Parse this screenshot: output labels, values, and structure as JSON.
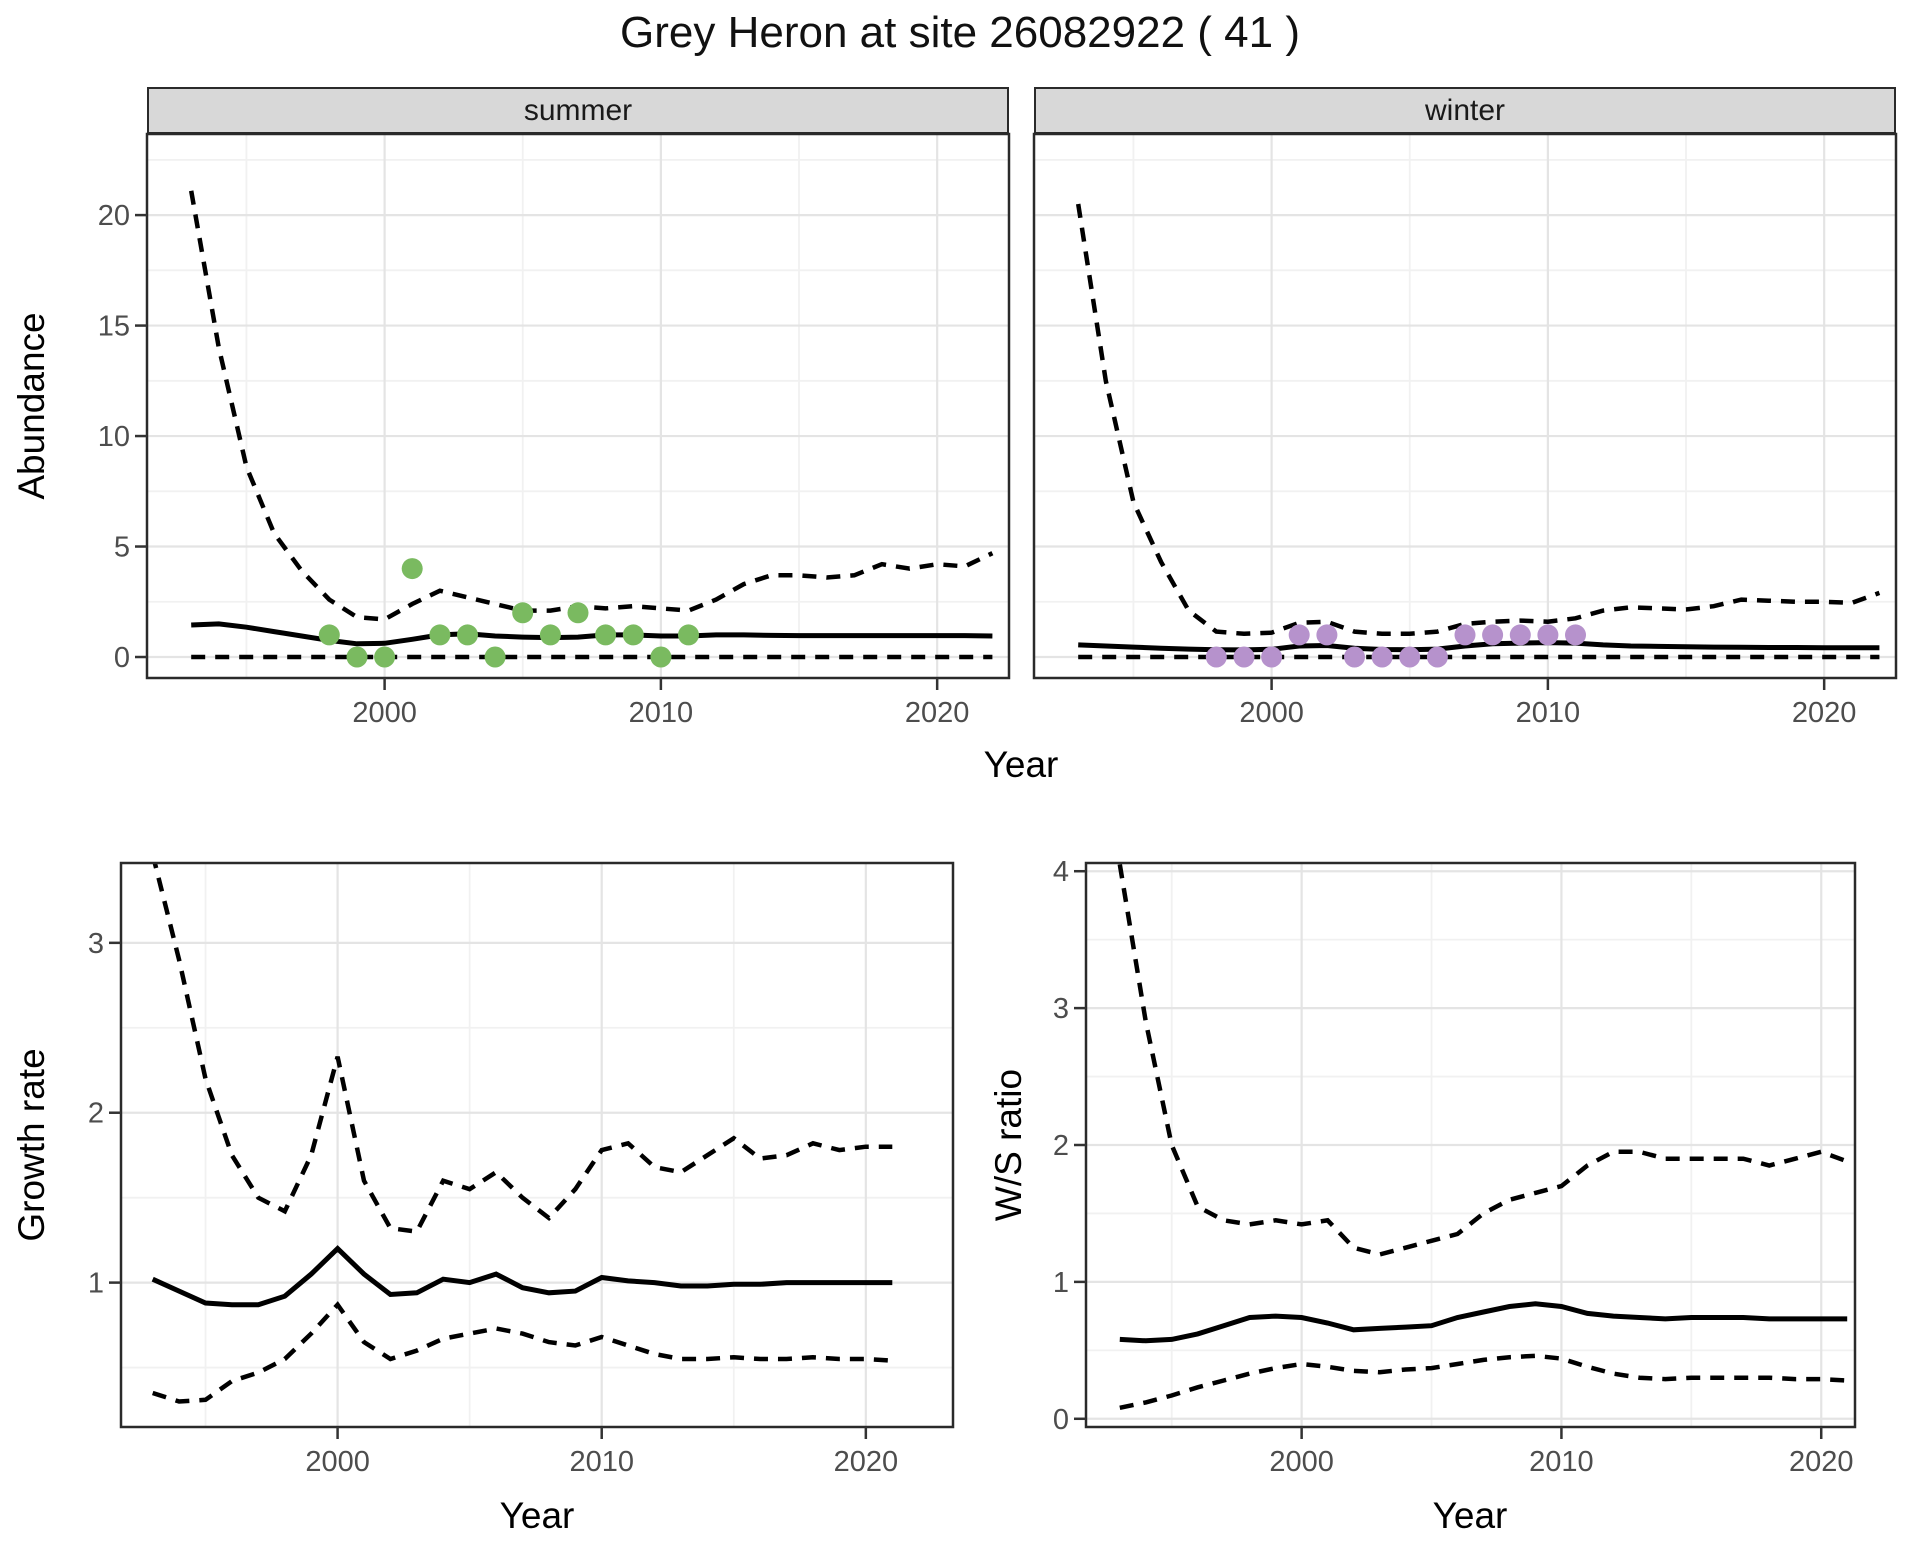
{
  "title": "Grey Heron at site 26082922 ( 41 )",
  "styles": {
    "background": "#FFFFFF",
    "line_color": "#000000",
    "grid_major": "#E4E4E4",
    "grid_minor": "#F1F1F1",
    "strip_bg": "#D8D8D8",
    "strip_text": "#1A1A1A",
    "panel_border": "#2A2A2A",
    "tick_mark_color": "#333333",
    "tick_label_color": "#4D4D4D",
    "summer_point": "#7ABA60",
    "winter_point": "#B692CC"
  },
  "chart_data": [
    {
      "id": "abundance_summer",
      "type": "line",
      "facet_label": "summer",
      "ylabel": "Abundance",
      "xlabel": "Year",
      "x_domain": [
        1991.4,
        2022.6
      ],
      "y_domain": [
        -0.95,
        23.67
      ],
      "x_ticks": [
        2000,
        2010,
        2020
      ],
      "x_minor": [
        1995,
        2005,
        2015
      ],
      "y_ticks": [
        0,
        5,
        10,
        15,
        20
      ],
      "y_minor": [
        2.5,
        7.5,
        12.5,
        17.5,
        22.5
      ],
      "show_y_tick_labels": true,
      "grid": true,
      "legend": "none",
      "years": [
        1993,
        1994,
        1995,
        1996,
        1997,
        1998,
        1999,
        2000,
        2001,
        2002,
        2003,
        2004,
        2005,
        2006,
        2007,
        2008,
        2009,
        2010,
        2011,
        2012,
        2013,
        2014,
        2015,
        2016,
        2017,
        2018,
        2019,
        2020,
        2021,
        2022
      ],
      "series": [
        {
          "name": "upper_ci",
          "style": "dashed",
          "values": [
            21.1,
            14.0,
            8.6,
            5.6,
            3.9,
            2.6,
            1.8,
            1.7,
            2.4,
            3.0,
            2.7,
            2.4,
            2.1,
            2.1,
            2.3,
            2.2,
            2.3,
            2.2,
            2.1,
            2.6,
            3.3,
            3.7,
            3.7,
            3.6,
            3.7,
            4.2,
            4.0,
            4.2,
            4.1,
            4.7
          ]
        },
        {
          "name": "fitted",
          "style": "solid",
          "values": [
            1.45,
            1.5,
            1.35,
            1.15,
            0.95,
            0.75,
            0.6,
            0.62,
            0.8,
            1.0,
            1.05,
            0.95,
            0.9,
            0.88,
            0.9,
            1.0,
            1.0,
            0.95,
            0.95,
            1.0,
            1.0,
            0.98,
            0.97,
            0.97,
            0.97,
            0.97,
            0.97,
            0.97,
            0.97,
            0.95
          ]
        },
        {
          "name": "lower_ci",
          "style": "dashed",
          "values": [
            0,
            0,
            0,
            0,
            0,
            0,
            0,
            0,
            0,
            0,
            0,
            0,
            0,
            0,
            0,
            0,
            0,
            0,
            0,
            0,
            0,
            0,
            0,
            0,
            0,
            0,
            0,
            0,
            0,
            0
          ]
        }
      ],
      "points": {
        "name": "observed_counts",
        "color_key": "summer_point",
        "years": [
          1998,
          1999,
          2000,
          2001,
          2002,
          2003,
          2004,
          2005,
          2006,
          2007,
          2008,
          2009,
          2010,
          2011
        ],
        "values": [
          1,
          0,
          0,
          4,
          1,
          1,
          0,
          2,
          1,
          2,
          1,
          1,
          0,
          1
        ]
      }
    },
    {
      "id": "abundance_winter",
      "type": "line",
      "facet_label": "winter",
      "ylabel": "Abundance",
      "xlabel": "Year",
      "x_domain": [
        1991.4,
        2022.6
      ],
      "y_domain": [
        -0.95,
        23.67
      ],
      "x_ticks": [
        2000,
        2010,
        2020
      ],
      "x_minor": [
        1995,
        2005,
        2015
      ],
      "y_ticks": [
        0,
        5,
        10,
        15,
        20
      ],
      "y_minor": [
        2.5,
        7.5,
        12.5,
        17.5,
        22.5
      ],
      "show_y_tick_labels": false,
      "grid": true,
      "legend": "none",
      "years": [
        1993,
        1994,
        1995,
        1996,
        1997,
        1998,
        1999,
        2000,
        2001,
        2002,
        2003,
        2004,
        2005,
        2006,
        2007,
        2008,
        2009,
        2010,
        2011,
        2012,
        2013,
        2014,
        2015,
        2016,
        2017,
        2018,
        2019,
        2020,
        2021,
        2022
      ],
      "series": [
        {
          "name": "upper_ci",
          "style": "dashed",
          "values": [
            20.5,
            12.5,
            7.0,
            4.3,
            2.1,
            1.15,
            1.05,
            1.1,
            1.55,
            1.6,
            1.15,
            1.05,
            1.05,
            1.15,
            1.5,
            1.6,
            1.65,
            1.6,
            1.75,
            2.1,
            2.25,
            2.2,
            2.15,
            2.3,
            2.6,
            2.55,
            2.5,
            2.5,
            2.45,
            2.9
          ]
        },
        {
          "name": "fitted",
          "style": "solid",
          "values": [
            0.55,
            0.5,
            0.45,
            0.4,
            0.36,
            0.33,
            0.32,
            0.35,
            0.5,
            0.52,
            0.4,
            0.34,
            0.33,
            0.36,
            0.5,
            0.6,
            0.63,
            0.65,
            0.63,
            0.55,
            0.5,
            0.48,
            0.46,
            0.45,
            0.44,
            0.43,
            0.43,
            0.42,
            0.42,
            0.42
          ]
        },
        {
          "name": "lower_ci",
          "style": "dashed",
          "values": [
            0,
            0,
            0,
            0,
            0,
            0,
            0,
            0,
            0,
            0,
            0,
            0,
            0,
            0,
            0,
            0,
            0,
            0,
            0,
            0,
            0,
            0,
            0,
            0,
            0,
            0,
            0,
            0,
            0,
            0
          ]
        }
      ],
      "points": {
        "name": "observed_counts",
        "color_key": "winter_point",
        "years": [
          1998,
          1999,
          2000,
          2001,
          2002,
          2003,
          2004,
          2005,
          2006,
          2007,
          2008,
          2009,
          2010,
          2011
        ],
        "values": [
          0,
          0,
          0,
          1,
          1,
          0,
          0,
          0,
          0,
          1,
          1,
          1,
          1,
          1
        ]
      }
    },
    {
      "id": "growth_rate",
      "type": "line",
      "facet_label": "",
      "ylabel": "Growth rate",
      "xlabel": "Year",
      "x_domain": [
        1991.8,
        2023.3
      ],
      "y_domain": [
        0.15,
        3.47
      ],
      "x_ticks": [
        2000,
        2010,
        2020
      ],
      "x_minor": [
        1995,
        2005,
        2015
      ],
      "y_ticks": [
        1,
        2,
        3
      ],
      "y_minor": [
        0.5,
        1.5,
        2.5
      ],
      "show_y_tick_labels": true,
      "grid": true,
      "legend": "none",
      "years": [
        1993,
        1994,
        1995,
        1996,
        1997,
        1998,
        1999,
        2000,
        2001,
        2002,
        2003,
        2004,
        2005,
        2006,
        2007,
        2008,
        2009,
        2010,
        2011,
        2012,
        2013,
        2014,
        2015,
        2016,
        2017,
        2018,
        2019,
        2020,
        2021
      ],
      "series": [
        {
          "name": "upper_ci",
          "style": "dashed",
          "values": [
            3.52,
            2.9,
            2.2,
            1.75,
            1.5,
            1.42,
            1.75,
            2.33,
            1.6,
            1.32,
            1.3,
            1.6,
            1.55,
            1.65,
            1.5,
            1.38,
            1.55,
            1.78,
            1.82,
            1.68,
            1.65,
            1.75,
            1.85,
            1.73,
            1.75,
            1.82,
            1.78,
            1.8,
            1.8
          ]
        },
        {
          "name": "fitted",
          "style": "solid",
          "values": [
            1.02,
            0.95,
            0.88,
            0.87,
            0.87,
            0.92,
            1.05,
            1.2,
            1.05,
            0.93,
            0.94,
            1.02,
            1.0,
            1.05,
            0.97,
            0.94,
            0.95,
            1.03,
            1.01,
            1.0,
            0.98,
            0.98,
            0.99,
            0.99,
            1.0,
            1.0,
            1.0,
            1.0,
            1.0
          ]
        },
        {
          "name": "lower_ci",
          "style": "dashed",
          "values": [
            0.35,
            0.3,
            0.31,
            0.42,
            0.47,
            0.55,
            0.7,
            0.87,
            0.65,
            0.55,
            0.6,
            0.67,
            0.7,
            0.73,
            0.7,
            0.65,
            0.63,
            0.68,
            0.63,
            0.58,
            0.55,
            0.55,
            0.56,
            0.55,
            0.55,
            0.56,
            0.55,
            0.55,
            0.54
          ]
        }
      ],
      "points": null
    },
    {
      "id": "ws_ratio",
      "type": "line",
      "facet_label": "",
      "ylabel": "W/S ratio",
      "xlabel": "Year",
      "x_domain": [
        1991.7,
        2021.3
      ],
      "y_domain": [
        -0.06,
        4.06
      ],
      "x_ticks": [
        2000,
        2010,
        2020
      ],
      "x_minor": [
        1995,
        2005,
        2015
      ],
      "y_ticks": [
        0,
        1,
        2,
        3,
        4
      ],
      "y_minor": [
        0.5,
        1.5,
        2.5,
        3.5
      ],
      "show_y_tick_labels": true,
      "grid": true,
      "legend": "none",
      "years": [
        1993,
        1994,
        1995,
        1996,
        1997,
        1998,
        1999,
        2000,
        2001,
        2002,
        2003,
        2004,
        2005,
        2006,
        2007,
        2008,
        2009,
        2010,
        2011,
        2012,
        2013,
        2014,
        2015,
        2016,
        2017,
        2018,
        2019,
        2020,
        2021
      ],
      "series": [
        {
          "name": "upper_ci",
          "style": "dashed",
          "values": [
            4.05,
            2.9,
            2.0,
            1.55,
            1.45,
            1.42,
            1.45,
            1.42,
            1.45,
            1.25,
            1.2,
            1.25,
            1.3,
            1.35,
            1.5,
            1.6,
            1.65,
            1.7,
            1.85,
            1.95,
            1.95,
            1.9,
            1.9,
            1.9,
            1.9,
            1.85,
            1.9,
            1.95,
            1.88
          ]
        },
        {
          "name": "fitted",
          "style": "solid",
          "values": [
            0.58,
            0.57,
            0.58,
            0.62,
            0.68,
            0.74,
            0.75,
            0.74,
            0.7,
            0.65,
            0.66,
            0.67,
            0.68,
            0.74,
            0.78,
            0.82,
            0.84,
            0.82,
            0.77,
            0.75,
            0.74,
            0.73,
            0.74,
            0.74,
            0.74,
            0.73,
            0.73,
            0.73,
            0.73
          ]
        },
        {
          "name": "lower_ci",
          "style": "dashed",
          "values": [
            0.08,
            0.12,
            0.17,
            0.23,
            0.28,
            0.33,
            0.37,
            0.4,
            0.38,
            0.35,
            0.34,
            0.36,
            0.37,
            0.4,
            0.43,
            0.45,
            0.46,
            0.44,
            0.38,
            0.33,
            0.3,
            0.29,
            0.3,
            0.3,
            0.3,
            0.3,
            0.29,
            0.29,
            0.28
          ]
        }
      ],
      "points": null
    }
  ]
}
